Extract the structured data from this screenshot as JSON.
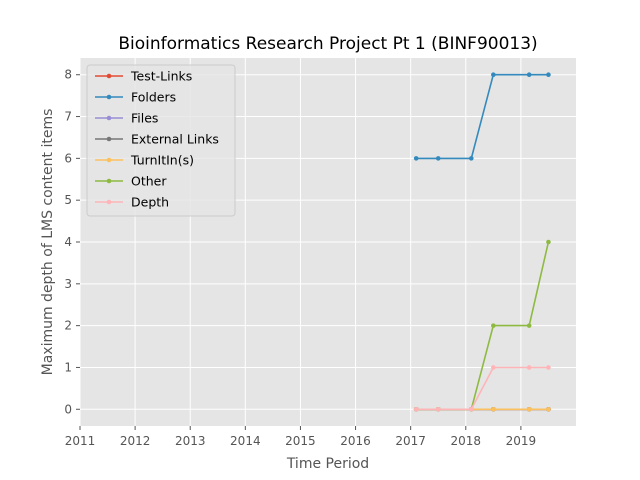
{
  "chart_data": {
    "type": "line",
    "title": "Bioinformatics Research Project Pt 1 (BINF90013)",
    "xlabel": "Time Period",
    "ylabel": "Maximum depth of LMS content items",
    "xlim": [
      2011,
      2020
    ],
    "ylim": [
      -0.4,
      8.4
    ],
    "xticks": [
      "2011",
      "2012",
      "2013",
      "2014",
      "2015",
      "2016",
      "2017",
      "2018",
      "2019"
    ],
    "yticks": [
      "0",
      "1",
      "2",
      "3",
      "4",
      "5",
      "6",
      "7",
      "8"
    ],
    "grid": true,
    "legend_position": "upper-left",
    "x": [
      2017.1,
      2017.5,
      2018.1,
      2018.5,
      2019.15,
      2019.5
    ],
    "series": [
      {
        "name": "Test-Links",
        "color": "#E24A33",
        "values": [
          0,
          0,
          0,
          0,
          0,
          0
        ]
      },
      {
        "name": "Folders",
        "color": "#348ABD",
        "values": [
          6,
          6,
          6,
          8,
          8,
          8
        ]
      },
      {
        "name": "Files",
        "color": "#988ED5",
        "values": [
          0,
          0,
          0,
          0,
          0,
          0
        ]
      },
      {
        "name": "External Links",
        "color": "#777777",
        "values": [
          0,
          0,
          0,
          0,
          0,
          0
        ]
      },
      {
        "name": "TurnItIn(s)",
        "color": "#FBC15E",
        "values": [
          0,
          0,
          0,
          0,
          0,
          0
        ]
      },
      {
        "name": "Other",
        "color": "#8EBA42",
        "values": [
          0,
          0,
          0,
          2,
          2,
          4
        ]
      },
      {
        "name": "Depth",
        "color": "#FFB5B8",
        "values": [
          0,
          0,
          0,
          1,
          1,
          1
        ]
      }
    ]
  }
}
